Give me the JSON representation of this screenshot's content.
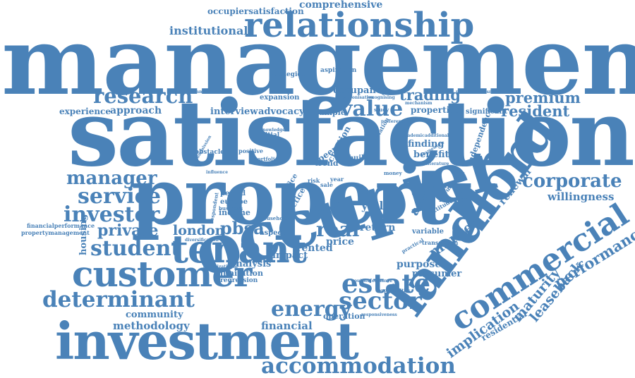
{
  "cloud": {
    "color": "#4a82b8",
    "background": "#ffffff",
    "words": {
      "management": "management",
      "satisfaction": "satisfaction",
      "property": "property",
      "occupier": "occupier",
      "investment": "investment",
      "landlord": "landlord",
      "relationship": "relationship",
      "tenant": "tenant",
      "customer": "customer",
      "commercial": "commercial",
      "accommodation": "accommodation",
      "estate": "estate",
      "sector": "sector",
      "energy": "energy",
      "determinant": "determinant",
      "student": "student",
      "investor": "investor",
      "service": "service",
      "manager": "manager",
      "research": "research",
      "value": "value",
      "corporate": "corporate",
      "real": "real",
      "pbsa": "pbsa",
      "london": "london",
      "private": "private",
      "trading": "trading",
      "premium": "premium",
      "resident": "resident",
      "institutional": "institutional",
      "comprehensive": "comprehensive",
      "occupiersatisfaction": "occupiersatisfaction",
      "performance": "performance",
      "implication": "implication",
      "maturity": "maturity",
      "leaseback": "leaseback",
      "willingness": "willingness",
      "renewal": "renewal",
      "market": "market",
      "asset": "asset",
      "yield": "yield",
      "return": "return",
      "rented": "rented",
      "price": "price",
      "impact": "impact",
      "analysis": "analysis",
      "methodology": "methodology",
      "community": "community",
      "financial": "financial",
      "operation": "operation",
      "purpose": "purpose",
      "prosumer": "prosumer",
      "residential": "residential",
      "housing": "housing",
      "experience": "experience",
      "approach": "approach",
      "interview": "interview",
      "advocacy": "advocacy",
      "sample": "sample",
      "occupancy": "occupancy",
      "properties": "properties",
      "significant": "significant",
      "expansion": "expansion",
      "strategies": "strategies",
      "aspiration": "aspiration",
      "finding": "finding",
      "benefit": "benefit",
      "creation": "creation",
      "peer": "peer",
      "trend": "trend",
      "built": "built",
      "independence": "independence",
      "income": "income",
      "europe": "europe",
      "period": "period",
      "practice": "practice",
      "paper": "paper",
      "office": "office",
      "aspect": "aspect",
      "limitation": "limitation",
      "regression": "regression",
      "financialperformance": "financialperformance",
      "propertymanagement": "propertymanagement",
      "nigerian": "nigerian",
      "variable": "variable",
      "transaction": "transaction",
      "attitude": "attitude",
      "european": "european",
      "obstacle": "obstacle",
      "initial": "initial",
      "positive": "positive",
      "portfolio": "portfolio",
      "household": "household",
      "business": "business",
      "respondent": "respondent",
      "year": "year",
      "sale": "sale",
      "risk": "risk",
      "money": "money",
      "preference": "preference",
      "academic": "academic",
      "additional": "additional",
      "mechanism": "mechanism",
      "communication": "communication",
      "professionalism": "professionalism",
      "outperformance": "outperformance",
      "opportunities": "opportunities",
      "responsiveness": "responsiveness",
      "practical": "practical",
      "framework": "framework",
      "diversification": "diversification",
      "organizational": "organizational",
      "relation": "relation",
      "knowledge": "knowledge",
      "study": "study",
      "decarbonisation": "decarbonisation",
      "recognising": "recognising",
      "influence": "influence",
      "commission": "commission",
      "literature": "literature"
    }
  }
}
